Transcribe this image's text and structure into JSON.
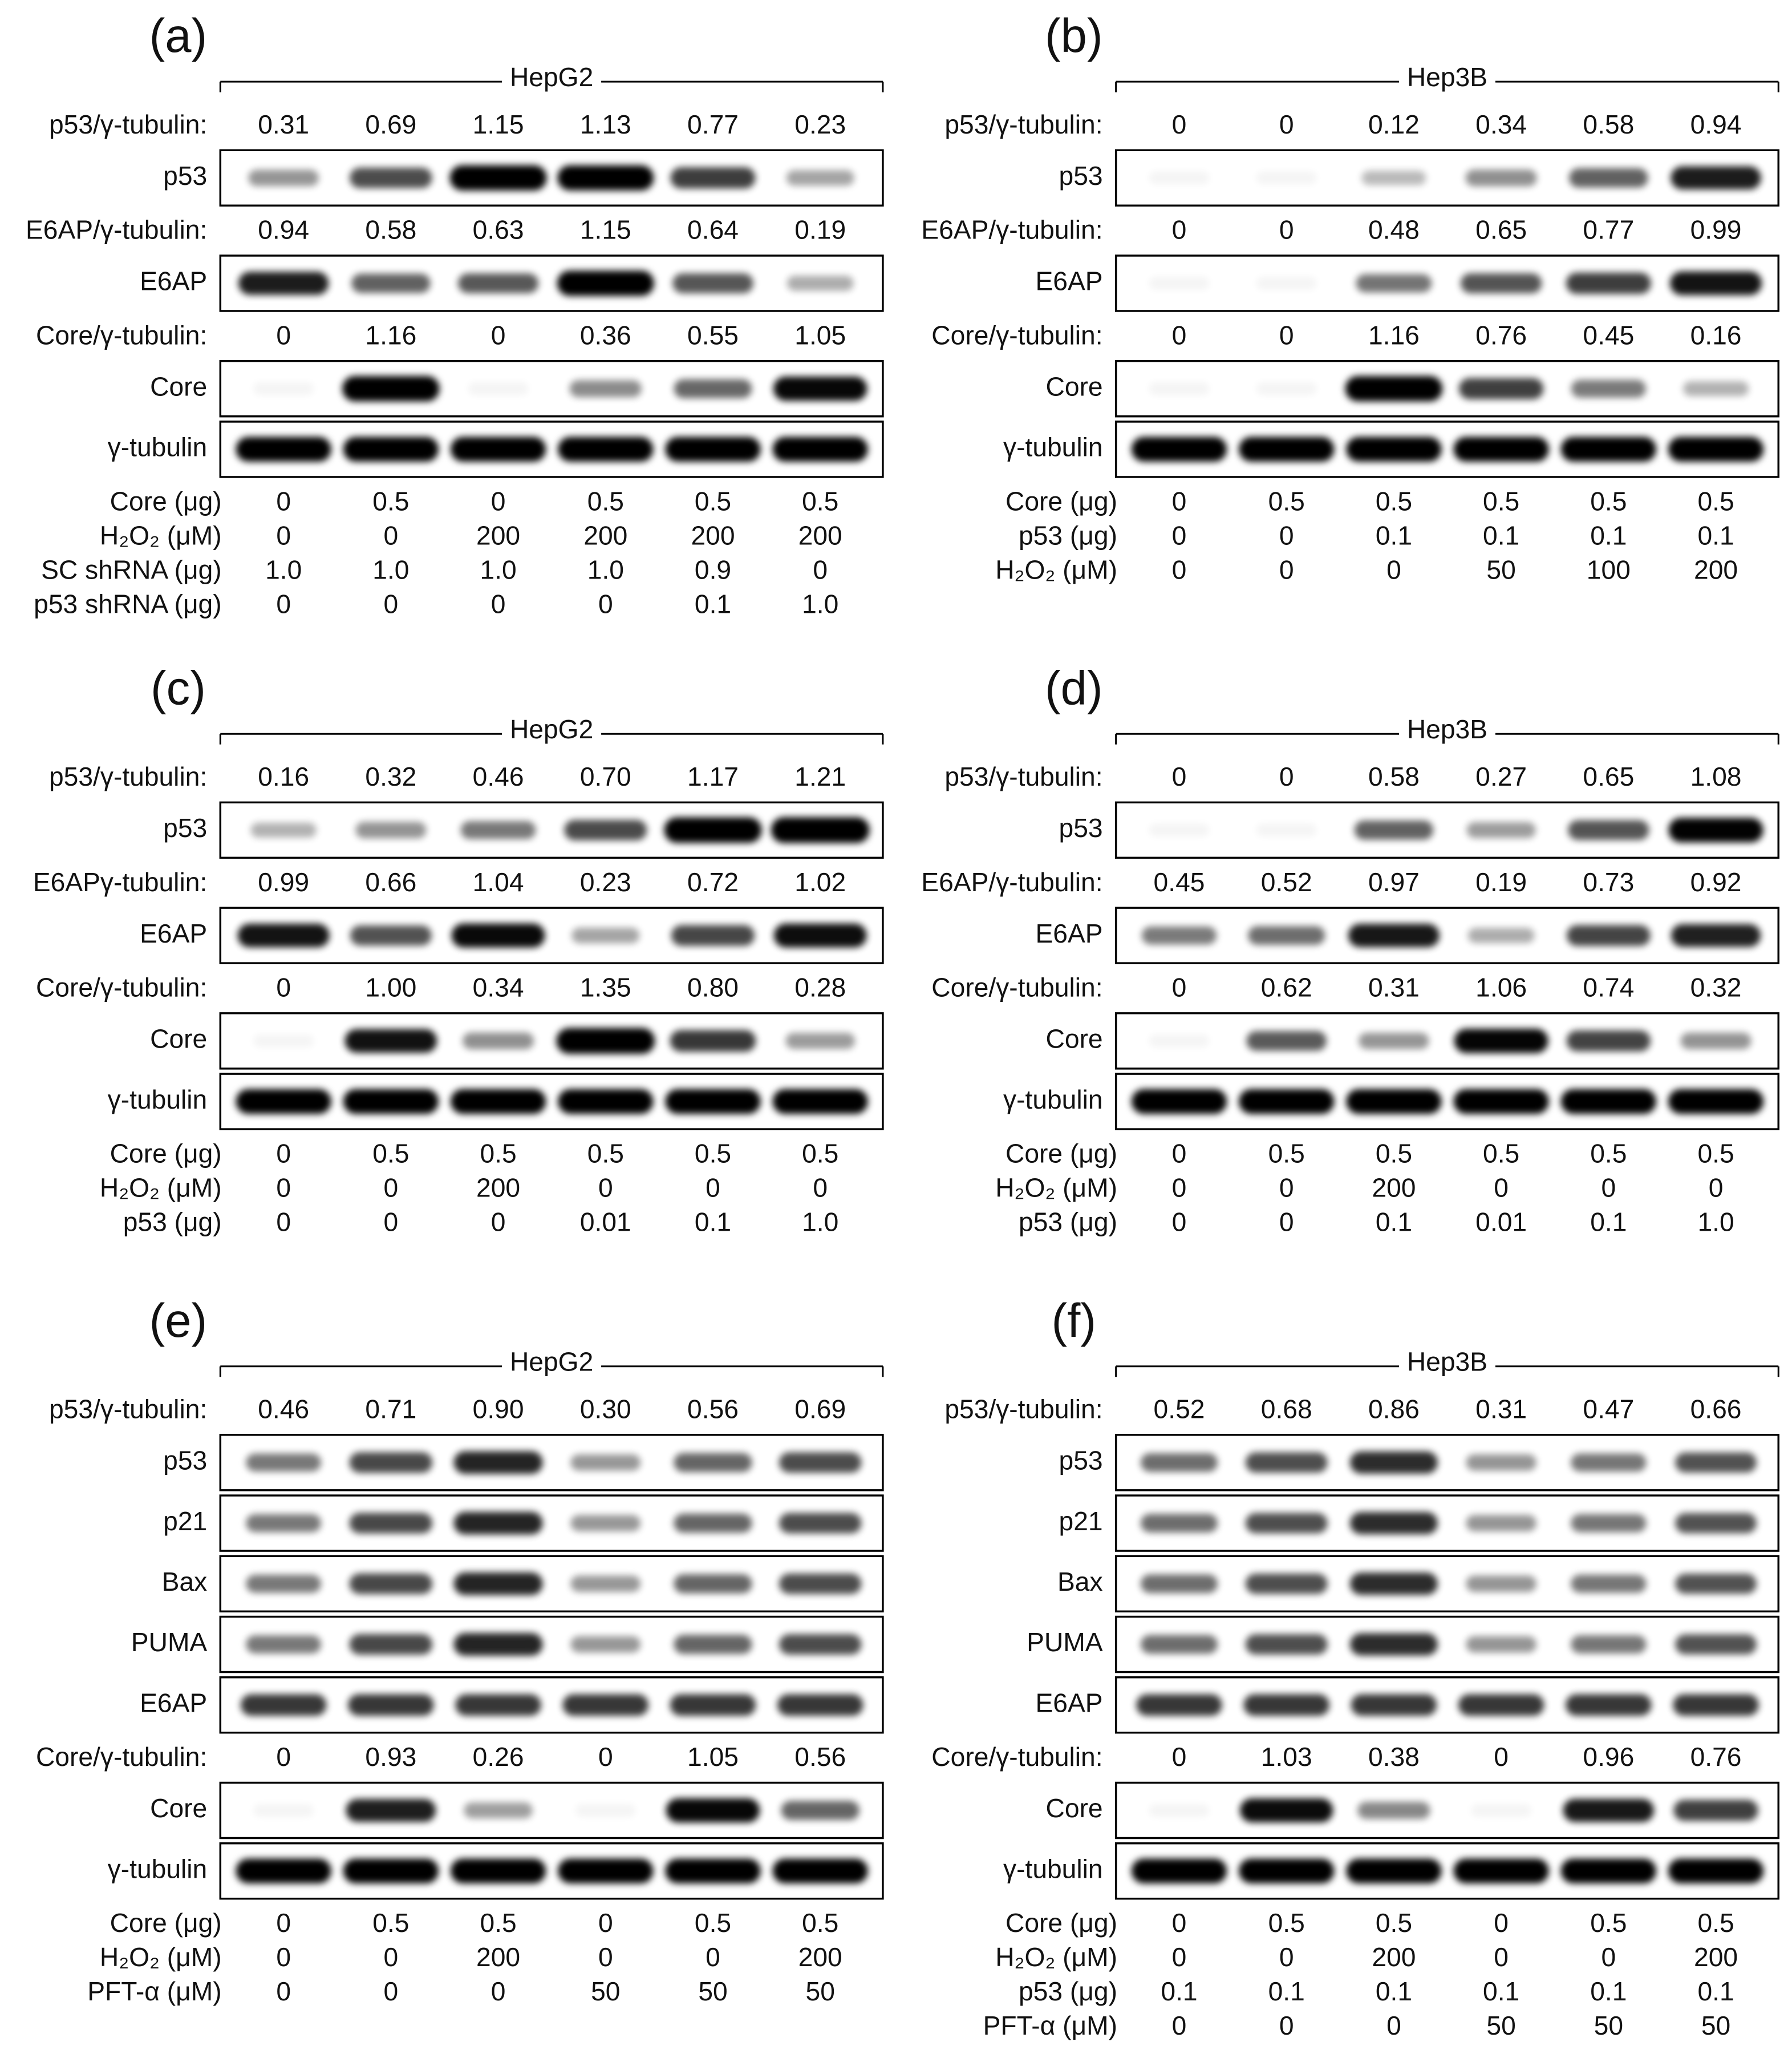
{
  "panels": [
    {
      "letter": "(a)",
      "cell_line": "HepG2",
      "blots": [
        {
          "ratio_label": "p53/γ-tubulin:",
          "ratios": [
            "0.31",
            "0.69",
            "1.15",
            "1.13",
            "0.77",
            "0.23"
          ],
          "label": "p53"
        },
        {
          "ratio_label": "E6AP/γ-tubulin:",
          "ratios": [
            "0.94",
            "0.58",
            "0.63",
            "1.15",
            "0.64",
            "0.19"
          ],
          "label": "E6AP"
        },
        {
          "ratio_label": "Core/γ-tubulin:",
          "ratios": [
            "0",
            "1.16",
            "0",
            "0.36",
            "0.55",
            "1.05"
          ],
          "label": "Core"
        },
        {
          "label": "γ-tubulin"
        }
      ],
      "conditions": [
        {
          "label": "Core (μg)",
          "values": [
            "0",
            "0.5",
            "0",
            "0.5",
            "0.5",
            "0.5"
          ]
        },
        {
          "label": "H₂O₂ (μM)",
          "values": [
            "0",
            "0",
            "200",
            "200",
            "200",
            "200"
          ]
        },
        {
          "label": "SC shRNA (μg)",
          "values": [
            "1.0",
            "1.0",
            "1.0",
            "1.0",
            "0.9",
            "0"
          ]
        },
        {
          "label": "p53 shRNA (μg)",
          "values": [
            "0",
            "0",
            "0",
            "0",
            "0.1",
            "1.0"
          ]
        }
      ]
    },
    {
      "letter": "(b)",
      "cell_line": "Hep3B",
      "blots": [
        {
          "ratio_label": "p53/γ-tubulin:",
          "ratios": [
            "0",
            "0",
            "0.12",
            "0.34",
            "0.58",
            "0.94"
          ],
          "label": "p53"
        },
        {
          "ratio_label": "E6AP/γ-tubulin:",
          "ratios": [
            "0",
            "0",
            "0.48",
            "0.65",
            "0.77",
            "0.99"
          ],
          "label": "E6AP"
        },
        {
          "ratio_label": "Core/γ-tubulin:",
          "ratios": [
            "0",
            "0",
            "1.16",
            "0.76",
            "0.45",
            "0.16"
          ],
          "label": "Core"
        },
        {
          "label": "γ-tubulin"
        }
      ],
      "conditions": [
        {
          "label": "Core (μg)",
          "values": [
            "0",
            "0.5",
            "0.5",
            "0.5",
            "0.5",
            "0.5"
          ]
        },
        {
          "label": "p53 (μg)",
          "values": [
            "0",
            "0",
            "0.1",
            "0.1",
            "0.1",
            "0.1"
          ]
        },
        {
          "label": "H₂O₂ (μM)",
          "values": [
            "0",
            "0",
            "0",
            "50",
            "100",
            "200"
          ]
        }
      ]
    },
    {
      "letter": "(c)",
      "cell_line": "HepG2",
      "blots": [
        {
          "ratio_label": "p53/γ-tubulin:",
          "ratios": [
            "0.16",
            "0.32",
            "0.46",
            "0.70",
            "1.17",
            "1.21"
          ],
          "label": "p53"
        },
        {
          "ratio_label": "E6APγ-tubulin:",
          "ratios": [
            "0.99",
            "0.66",
            "1.04",
            "0.23",
            "0.72",
            "1.02"
          ],
          "label": "E6AP"
        },
        {
          "ratio_label": "Core/γ-tubulin:",
          "ratios": [
            "0",
            "1.00",
            "0.34",
            "1.35",
            "0.80",
            "0.28"
          ],
          "label": "Core"
        },
        {
          "label": "γ-tubulin"
        }
      ],
      "conditions": [
        {
          "label": "Core (μg)",
          "values": [
            "0",
            "0.5",
            "0.5",
            "0.5",
            "0.5",
            "0.5"
          ]
        },
        {
          "label": "H₂O₂ (μM)",
          "values": [
            "0",
            "0",
            "200",
            "0",
            "0",
            "0"
          ]
        },
        {
          "label": "p53 (μg)",
          "values": [
            "0",
            "0",
            "0",
            "0.01",
            "0.1",
            "1.0"
          ]
        }
      ]
    },
    {
      "letter": "(d)",
      "cell_line": "Hep3B",
      "blots": [
        {
          "ratio_label": "p53/γ-tubulin:",
          "ratios": [
            "0",
            "0",
            "0.58",
            "0.27",
            "0.65",
            "1.08"
          ],
          "label": "p53"
        },
        {
          "ratio_label": "E6AP/γ-tubulin:",
          "ratios": [
            "0.45",
            "0.52",
            "0.97",
            "0.19",
            "0.73",
            "0.92"
          ],
          "label": "E6AP"
        },
        {
          "ratio_label": "Core/γ-tubulin:",
          "ratios": [
            "0",
            "0.62",
            "0.31",
            "1.06",
            "0.74",
            "0.32"
          ],
          "label": "Core"
        },
        {
          "label": "γ-tubulin"
        }
      ],
      "conditions": [
        {
          "label": "Core (μg)",
          "values": [
            "0",
            "0.5",
            "0.5",
            "0.5",
            "0.5",
            "0.5"
          ]
        },
        {
          "label": "H₂O₂ (μM)",
          "values": [
            "0",
            "0",
            "200",
            "0",
            "0",
            "0"
          ]
        },
        {
          "label": "p53 (μg)",
          "values": [
            "0",
            "0",
            "0.1",
            "0.01",
            "0.1",
            "1.0"
          ]
        }
      ]
    },
    {
      "letter": "(e)",
      "cell_line": "HepG2",
      "blots": [
        {
          "ratio_label": "p53/γ-tubulin:",
          "ratios": [
            "0.46",
            "0.71",
            "0.90",
            "0.30",
            "0.56",
            "0.69"
          ],
          "label": "p53"
        },
        {
          "label": "p21"
        },
        {
          "label": "Bax"
        },
        {
          "label": "PUMA"
        },
        {
          "label": "E6AP"
        },
        {
          "ratio_label": "Core/γ-tubulin:",
          "ratios": [
            "0",
            "0.93",
            "0.26",
            "0",
            "1.05",
            "0.56"
          ],
          "label": "Core"
        },
        {
          "label": "γ-tubulin"
        }
      ],
      "conditions": [
        {
          "label": "Core (μg)",
          "values": [
            "0",
            "0.5",
            "0.5",
            "0",
            "0.5",
            "0.5"
          ]
        },
        {
          "label": "H₂O₂ (μM)",
          "values": [
            "0",
            "0",
            "200",
            "0",
            "0",
            "200"
          ]
        },
        {
          "label": "PFT-α (μM)",
          "values": [
            "0",
            "0",
            "0",
            "50",
            "50",
            "50"
          ]
        }
      ]
    },
    {
      "letter": "(f)",
      "cell_line": "Hep3B",
      "blots": [
        {
          "ratio_label": "p53/γ-tubulin:",
          "ratios": [
            "0.52",
            "0.68",
            "0.86",
            "0.31",
            "0.47",
            "0.66"
          ],
          "label": "p53"
        },
        {
          "label": "p21"
        },
        {
          "label": "Bax"
        },
        {
          "label": "PUMA"
        },
        {
          "label": "E6AP"
        },
        {
          "ratio_label": "Core/γ-tubulin:",
          "ratios": [
            "0",
            "1.03",
            "0.38",
            "0",
            "0.96",
            "0.76"
          ],
          "label": "Core"
        },
        {
          "label": "γ-tubulin"
        }
      ],
      "conditions": [
        {
          "label": "Core (μg)",
          "values": [
            "0",
            "0.5",
            "0.5",
            "0",
            "0.5",
            "0.5"
          ]
        },
        {
          "label": "H₂O₂ (μM)",
          "values": [
            "0",
            "0",
            "200",
            "0",
            "0",
            "200"
          ]
        },
        {
          "label": "p53 (μg)",
          "values": [
            "0.1",
            "0.1",
            "0.1",
            "0.1",
            "0.1",
            "0.1"
          ]
        },
        {
          "label": "PFT-α (μM)",
          "values": [
            "0",
            "0",
            "0",
            "50",
            "50",
            "50"
          ]
        }
      ]
    }
  ]
}
